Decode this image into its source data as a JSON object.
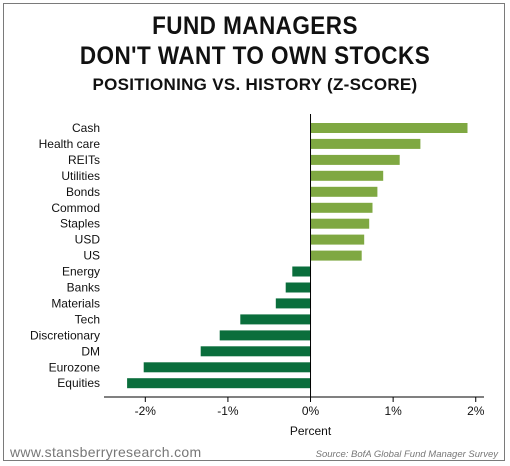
{
  "title_line1": "FUND MANAGERS",
  "title_line2": "DON'T WANT TO OWN STOCKS",
  "subtitle": "POSITIONING VS. HISTORY (Z-SCORE)",
  "footer_left": "www.stansberryresearch.com",
  "footer_right": "Source: BofA Global Fund Manager Survey",
  "colors": {
    "positive": "#7fa842",
    "negative": "#0a6e3c",
    "axis": "#000000"
  },
  "chart_data": {
    "type": "bar",
    "orientation": "horizontal",
    "xlabel": "Percent",
    "xlim": [
      -2.5,
      2.1
    ],
    "xticks": [
      -2,
      -1,
      0,
      1,
      2
    ],
    "xtick_labels": [
      "-2%",
      "-1%",
      "0%",
      "1%",
      "2%"
    ],
    "categories": [
      "Cash",
      "Health care",
      "REITs",
      "Utilities",
      "Bonds",
      "Commod",
      "Staples",
      "USD",
      "US",
      "Energy",
      "Banks",
      "Materials",
      "Tech",
      "Discretionary",
      "DM",
      "Eurozone",
      "Equities"
    ],
    "values": [
      1.9,
      1.33,
      1.08,
      0.88,
      0.81,
      0.75,
      0.71,
      0.65,
      0.62,
      -0.22,
      -0.3,
      -0.42,
      -0.85,
      -1.1,
      -1.33,
      -2.02,
      -2.22
    ],
    "grid": false,
    "legend": "none"
  }
}
